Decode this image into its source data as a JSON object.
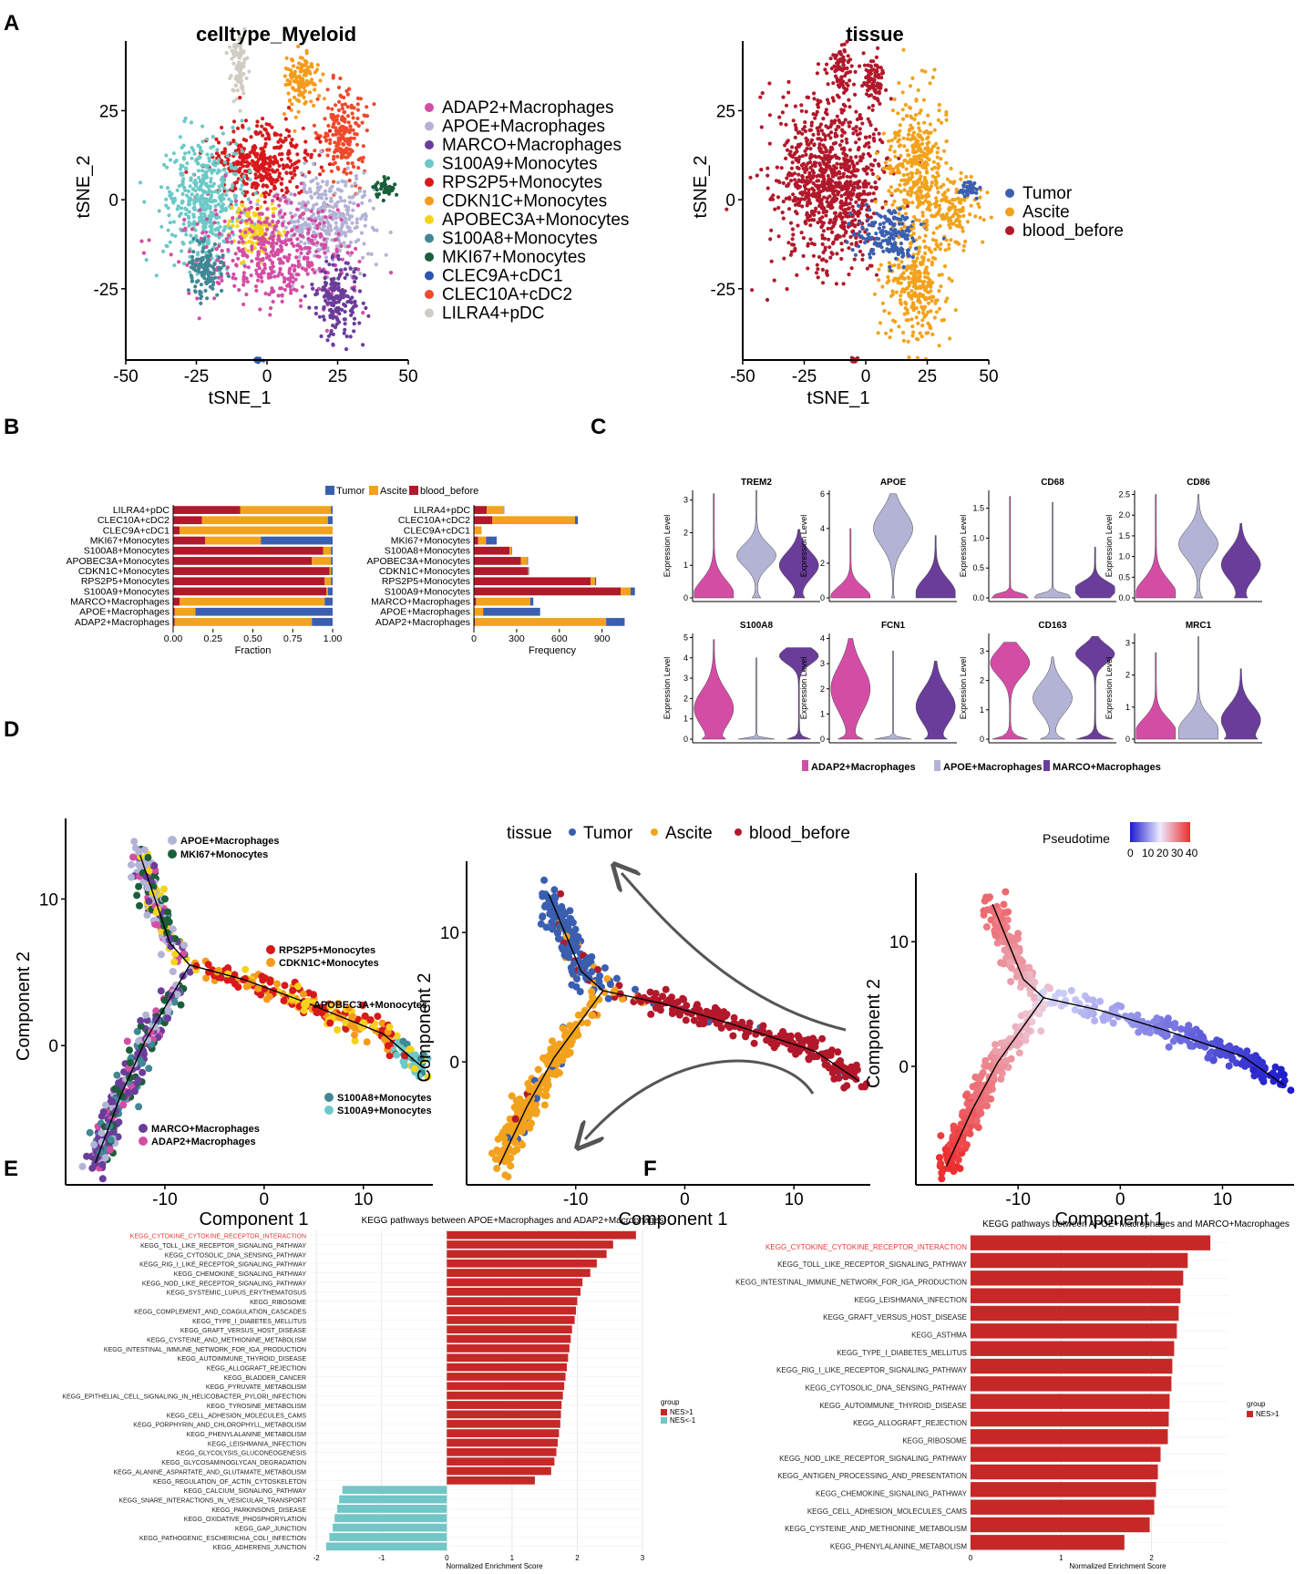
{
  "colors": {
    "ADAP2": "#d44da5",
    "APOE": "#b3b3d6",
    "MARCO": "#6a3d9a",
    "S100A9": "#6cc9c7",
    "RPS2P5": "#d7191c",
    "CDKN1C": "#f59b1c",
    "APOBEC3A": "#f5d31c",
    "S100A8": "#3f8894",
    "MKI67": "#1b5e3a",
    "CLEC9A": "#2b56b4",
    "CLEC10A": "#f0492b",
    "LILRA4": "#cfcdc3",
    "tumor": "#3a5fb0",
    "ascite": "#f2a21c",
    "blood": "#b2182b",
    "up": "#c62828",
    "down": "#73c6c6",
    "highlight": "#e53935"
  },
  "panel_labels": [
    "A",
    "B",
    "C",
    "D",
    "E",
    "F"
  ],
  "chart_data": [
    {
      "id": "A1",
      "type": "scatter",
      "title": "celltype_Myeloid",
      "xlabel": "tSNE_1",
      "ylabel": "tSNE_2",
      "xlim": [
        -50,
        50
      ],
      "ylim": [
        -45,
        42
      ],
      "xticks": [
        "-50",
        "-25",
        "0",
        "25",
        "50"
      ],
      "yticks": [
        "25",
        "0",
        "-25"
      ],
      "legend": [
        "ADAP2+Macrophages",
        "APOE+Macrophages",
        "MARCO+Macrophages",
        "S100A9+Monocytes",
        "RPS2P5+Monocytes",
        "CDKN1C+Monocytes",
        "APOBEC3A+Monocytes",
        "S100A8+Monocytes",
        "MKI67+Monocytes",
        "CLEC9A+cDC1",
        "CLEC10A+cDC2",
        "LILRA4+pDC"
      ],
      "legend_keys": [
        "ADAP2",
        "APOE",
        "MARCO",
        "S100A9",
        "RPS2P5",
        "CDKN1C",
        "APOBEC3A",
        "S100A8",
        "MKI67",
        "CLEC9A",
        "CLEC10A",
        "LILRA4"
      ],
      "clusters": [
        {
          "key": "LILRA4",
          "cx": -10,
          "cy": 37,
          "sx": 1.6,
          "sy": 3.6,
          "n": 90
        },
        {
          "key": "CDKN1C",
          "cx": 12,
          "cy": 33,
          "sx": 3,
          "sy": 4,
          "n": 130
        },
        {
          "key": "CLEC10A",
          "cx": 27,
          "cy": 18,
          "sx": 4,
          "sy": 7,
          "n": 200
        },
        {
          "key": "RPS2P5",
          "cx": -2,
          "cy": 10,
          "sx": 9,
          "sy": 5,
          "n": 380
        },
        {
          "key": "S100A9",
          "cx": -22,
          "cy": 0,
          "sx": 7,
          "sy": 9,
          "n": 450
        },
        {
          "key": "APOBEC3A",
          "cx": -4,
          "cy": -8,
          "sx": 4,
          "sy": 4,
          "n": 150
        },
        {
          "key": "APOE",
          "cx": 22,
          "cy": -5,
          "sx": 8,
          "sy": 6,
          "n": 350
        },
        {
          "key": "ADAP2",
          "cx": 2,
          "cy": -15,
          "sx": 13,
          "sy": 7,
          "n": 450
        },
        {
          "key": "S100A8",
          "cx": -22,
          "cy": -20,
          "sx": 3,
          "sy": 4,
          "n": 120
        },
        {
          "key": "MARCO",
          "cx": 25,
          "cy": -28,
          "sx": 4,
          "sy": 5,
          "n": 180
        },
        {
          "key": "MKI67",
          "cx": 42,
          "cy": 3,
          "sx": 2,
          "sy": 1.5,
          "n": 40
        },
        {
          "key": "CLEC9A",
          "cx": -3,
          "cy": -45,
          "sx": 0.7,
          "sy": 0.4,
          "n": 14
        }
      ]
    },
    {
      "id": "A2",
      "type": "scatter",
      "title": "tissue",
      "xlabel": "tSNE_1",
      "ylabel": "tSNE_2",
      "xlim": [
        -50,
        50
      ],
      "ylim": [
        -45,
        42
      ],
      "xticks": [
        "-50",
        "-25",
        "0",
        "25",
        "50"
      ],
      "yticks": [
        "25",
        "0",
        "-25"
      ],
      "legend": [
        "Tumor",
        "Ascite",
        "blood_before"
      ],
      "legend_keys": [
        "tumor",
        "ascite",
        "blood"
      ],
      "clusters": [
        {
          "key": "blood",
          "cx": -10,
          "cy": 37,
          "sx": 2,
          "sy": 3.5,
          "n": 80
        },
        {
          "key": "blood",
          "cx": 3,
          "cy": 33,
          "sx": 2,
          "sy": 4,
          "n": 90
        },
        {
          "key": "blood",
          "cx": -15,
          "cy": 5,
          "sx": 11,
          "sy": 11,
          "n": 900
        },
        {
          "key": "ascite",
          "cx": 20,
          "cy": 10,
          "sx": 6,
          "sy": 10,
          "n": 350
        },
        {
          "key": "ascite",
          "cx": 20,
          "cy": -25,
          "sx": 6,
          "sy": 7,
          "n": 280
        },
        {
          "key": "tumor",
          "cx": 10,
          "cy": -10,
          "sx": 7,
          "sy": 4,
          "n": 180
        },
        {
          "key": "ascite",
          "cx": 35,
          "cy": -3,
          "sx": 6,
          "sy": 5,
          "n": 140
        },
        {
          "key": "tumor",
          "cx": 42,
          "cy": 3,
          "sx": 2,
          "sy": 1.5,
          "n": 40
        },
        {
          "key": "blood",
          "cx": -5,
          "cy": -45,
          "sx": 0.8,
          "sy": 0.4,
          "n": 12
        }
      ]
    },
    {
      "id": "B1",
      "type": "bar",
      "stacked": true,
      "orientation": "horizontal",
      "xlabel": "Fraction",
      "xlim": [
        0,
        1
      ],
      "xticks": [
        "0.00",
        "0.25",
        "0.50",
        "0.75",
        "1.00"
      ],
      "legend": [
        "Tumor",
        "Ascite",
        "blood_before"
      ],
      "categories": [
        "LILRA4+pDC",
        "CLEC10A+cDC2",
        "CLEC9A+cDC1",
        "MKI67+Monocytes",
        "S100A8+Monocytes",
        "APOBEC3A+Monocytes",
        "CDKN1C+Monocytes",
        "RPS2P5+Monocytes",
        "S100A9+Monocytes",
        "MARCO+Macrophages",
        "APOE+Macrophages",
        "ADAP2+Macrophages"
      ],
      "series": [
        {
          "name": "blood_before",
          "values": [
            0.42,
            0.18,
            0.04,
            0.2,
            0.94,
            0.87,
            0.98,
            0.95,
            0.96,
            0.04,
            0.01,
            0.01
          ]
        },
        {
          "name": "Ascite",
          "values": [
            0.57,
            0.79,
            0.96,
            0.35,
            0.05,
            0.12,
            0.01,
            0.04,
            0.01,
            0.91,
            0.13,
            0.86
          ]
        },
        {
          "name": "Tumor",
          "values": [
            0.01,
            0.03,
            0.0,
            0.45,
            0.01,
            0.01,
            0.01,
            0.01,
            0.03,
            0.05,
            0.86,
            0.13
          ]
        }
      ]
    },
    {
      "id": "B2",
      "type": "bar",
      "stacked": true,
      "orientation": "horizontal",
      "xlabel": "Frequency",
      "xlim": [
        0,
        1100
      ],
      "xticks": [
        "0",
        "300",
        "600",
        "900"
      ],
      "categories": [
        "LILRA4+pDC",
        "CLEC10A+cDC2",
        "CLEC9A+cDC1",
        "MKI67+Monocytes",
        "S100A8+Monocytes",
        "APOBEC3A+Monocytes",
        "CDKN1C+Monocytes",
        "RPS2P5+Monocytes",
        "S100A9+Monocytes",
        "MARCO+Macrophages",
        "APOE+Macrophages",
        "ADAP2+Macrophages"
      ],
      "series": [
        {
          "name": "blood_before",
          "values": [
            90,
            130,
            4,
            30,
            250,
            330,
            380,
            820,
            1030,
            15,
            5,
            8
          ]
        },
        {
          "name": "Ascite",
          "values": [
            120,
            580,
            50,
            55,
            15,
            45,
            5,
            30,
            70,
            380,
            60,
            920
          ]
        },
        {
          "name": "Tumor",
          "values": [
            2,
            20,
            0,
            75,
            2,
            5,
            2,
            8,
            30,
            22,
            400,
            130
          ]
        }
      ]
    },
    {
      "id": "C",
      "type": "violin",
      "ylabel": "Expression Level",
      "groups": [
        "ADAP2+Macrophages",
        "APOE+Macrophages",
        "MARCO+Macrophages"
      ],
      "genes": [
        {
          "name": "TREM2",
          "ymax": 3.3,
          "yticks": [
            "0",
            "1",
            "2",
            "3"
          ],
          "tickvals": [
            0,
            1,
            2,
            3
          ],
          "shapes": [
            [
              0.35,
              0.1,
              0.45,
              3.2
            ],
            [
              0.2,
              1.3,
              0.35,
              3.3
            ],
            [
              0.25,
              1.0,
              0.4,
              2.1
            ]
          ]
        },
        {
          "name": "APOE",
          "ymax": 6.2,
          "yticks": [
            "0",
            "2",
            "4",
            "6"
          ],
          "tickvals": [
            0,
            2,
            4,
            6
          ],
          "shapes": [
            [
              0.18,
              0.05,
              0.6,
              4.0
            ],
            [
              0.05,
              4.0,
              1.0,
              6.0
            ],
            [
              0.3,
              0.3,
              0.8,
              3.6
            ]
          ]
        },
        {
          "name": "CD68",
          "ymax": 1.8,
          "yticks": [
            "0.0",
            "0.5",
            "1.0",
            "1.5"
          ],
          "tickvals": [
            0,
            0.5,
            1.0,
            1.5
          ],
          "shapes": [
            [
              0.01,
              0.02,
              0.05,
              1.7
            ],
            [
              0.01,
              0.02,
              0.05,
              1.6
            ],
            [
              0.3,
              0.15,
              0.12,
              0.85
            ]
          ]
        },
        {
          "name": "CD86",
          "ymax": 2.6,
          "yticks": [
            "0.0",
            "0.5",
            "1.0",
            "1.5",
            "2.0",
            "2.5"
          ],
          "tickvals": [
            0,
            0.5,
            1.0,
            1.5,
            2.0,
            2.5
          ],
          "shapes": [
            [
              0.3,
              0.1,
              0.35,
              2.5
            ],
            [
              0.2,
              1.3,
              0.35,
              2.5
            ],
            [
              0.25,
              0.8,
              0.35,
              1.8
            ]
          ]
        },
        {
          "name": "S100A8",
          "ymax": 5.2,
          "yticks": [
            "0",
            "1",
            "2",
            "3",
            "4",
            "5"
          ],
          "tickvals": [
            0,
            1,
            2,
            3,
            4,
            5
          ],
          "shapes": [
            [
              0.35,
              1.5,
              0.9,
              4.9
            ],
            [
              0.01,
              0.02,
              0.05,
              4.0
            ],
            [
              0.6,
              4.1,
              0.4,
              4.5
            ]
          ]
        },
        {
          "name": "FCN1",
          "ymax": 4.2,
          "yticks": [
            "0",
            "1",
            "2",
            "3",
            "4"
          ],
          "tickvals": [
            0,
            1,
            2,
            3,
            4
          ],
          "shapes": [
            [
              0.55,
              2.0,
              0.9,
              4.0
            ],
            [
              0.01,
              0.02,
              0.05,
              3.5
            ],
            [
              0.4,
              1.3,
              0.7,
              3.1
            ]
          ]
        },
        {
          "name": "CD163",
          "ymax": 3.6,
          "yticks": [
            "0",
            "1",
            "2",
            "3"
          ],
          "tickvals": [
            0,
            1,
            2,
            3
          ],
          "shapes": [
            [
              0.9,
              2.6,
              0.45,
              3.3
            ],
            [
              0.6,
              1.4,
              0.5,
              2.8
            ],
            [
              0.95,
              2.9,
              0.3,
              3.5
            ]
          ]
        },
        {
          "name": "MRC1",
          "ymax": 3.3,
          "yticks": [
            "0",
            "1",
            "2",
            "3"
          ],
          "tickvals": [
            0,
            1,
            2,
            3
          ],
          "shapes": [
            [
              0.45,
              0.25,
              0.4,
              2.7
            ],
            [
              0.25,
              0.3,
              0.4,
              3.2
            ],
            [
              0.45,
              0.6,
              0.45,
              2.2
            ]
          ]
        }
      ]
    },
    {
      "id": "D1",
      "type": "scatter",
      "subtype": "trajectory",
      "xlabel": "Component 1",
      "ylabel": "Component 2",
      "xlim": [
        -20,
        17
      ],
      "ylim": [
        -9.5,
        15.5
      ],
      "xticks": [
        "-10",
        "0",
        "10"
      ],
      "yticks": [
        "10",
        "0"
      ],
      "labels": [
        {
          "text": "APOE+Macrophages",
          "key": "APOE"
        },
        {
          "text": "MKI67+Monocytes",
          "key": "MKI67"
        },
        {
          "text": "RPS2P5+Monocytes",
          "key": "RPS2P5"
        },
        {
          "text": "CDKN1C+Monocytes",
          "key": "CDKN1C"
        },
        {
          "text": "APOBEC3A+Monocytes",
          "key": "APOBEC3A"
        },
        {
          "text": "S100A8+Monocytes",
          "key": "S100A8"
        },
        {
          "text": "S100A9+Monocytes",
          "key": "S100A9"
        },
        {
          "text": "MARCO+Macrophages",
          "key": "MARCO"
        },
        {
          "text": "ADAP2+Macrophages",
          "key": "ADAP2"
        }
      ]
    },
    {
      "id": "D2",
      "type": "scatter",
      "subtype": "trajectory",
      "xlabel": "Component 1",
      "ylabel": "Component 2",
      "xlim": [
        -20,
        17
      ],
      "ylim": [
        -9.5,
        15.5
      ],
      "xticks": [
        "-10",
        "0",
        "10"
      ],
      "yticks": [
        "10",
        "0"
      ],
      "legend_title": "tissue",
      "legend": [
        "Tumor",
        "Ascite",
        "blood_before"
      ]
    },
    {
      "id": "D3",
      "type": "scatter",
      "subtype": "trajectory",
      "xlabel": "Component 1",
      "ylabel": "Component 2",
      "xlim": [
        -20,
        17
      ],
      "ylim": [
        -9.5,
        15.5
      ],
      "xticks": [
        "-10",
        "0",
        "10"
      ],
      "yticks": [
        "10",
        "0"
      ],
      "colorbar_title": "Pseudotime",
      "colorbar_ticks": [
        "0",
        "10",
        "20",
        "30",
        "40"
      ]
    },
    {
      "id": "E",
      "type": "bar",
      "orientation": "horizontal",
      "title": "KEGG pathways between APOE+Macrophages and ADAP2+Macrophages",
      "xlabel": "Normalized Enrichment Score",
      "xlim": [
        -2.1,
        3.0
      ],
      "xticks": [
        "-2",
        "-1",
        "0",
        "1",
        "2",
        "3"
      ],
      "legend_title": "group",
      "legend": [
        "NES>1",
        "NES<-1"
      ],
      "categories": [
        "KEGG_CYTOKINE_CYTOKINE_RECEPTOR_INTERACTION",
        "KEGG_TOLL_LIKE_RECEPTOR_SIGNALING_PATHWAY",
        "KEGG_CYTOSOLIC_DNA_SENSING_PATHWAY",
        "KEGG_RIG_I_LIKE_RECEPTOR_SIGNALING_PATHWAY",
        "KEGG_CHEMOKINE_SIGNALING_PATHWAY",
        "KEGG_NOD_LIKE_RECEPTOR_SIGNALING_PATHWAY",
        "KEGG_SYSTEMIC_LUPUS_ERYTHEMATOSUS",
        "KEGG_RIBOSOME",
        "KEGG_COMPLEMENT_AND_COAGULATION_CASCADES",
        "KEGG_TYPE_I_DIABETES_MELLITUS",
        "KEGG_GRAFT_VERSUS_HOST_DISEASE",
        "KEGG_CYSTEINE_AND_METHIONINE_METABOLISM",
        "KEGG_INTESTINAL_IMMUNE_NETWORK_FOR_IGA_PRODUCTION",
        "KEGG_AUTOIMMUNE_THYROID_DISEASE",
        "KEGG_ALLOGRAFT_REJECTION",
        "KEGG_BLADDER_CANCER",
        "KEGG_PYRUVATE_METABOLISM",
        "KEGG_EPITHELIAL_CELL_SIGNALING_IN_HELICOBACTER_PYLORI_INFECTION",
        "KEGG_TYROSINE_METABOLISM",
        "KEGG_CELL_ADHESION_MOLECULES_CAMS",
        "KEGG_PORPHYRIN_AND_CHLOROPHYLL_METABOLISM",
        "KEGG_PHENYLALANINE_METABOLISM",
        "KEGG_LEISHMANIA_INFECTION",
        "KEGG_GLYCOLYSIS_GLUCONEOGENESIS",
        "KEGG_GLYCOSAMINOGLYCAN_DEGRADATION",
        "KEGG_ALANINE_ASPARTATE_AND_GLUTAMATE_METABOLISM",
        "KEGG_REGULATION_OF_ACTIN_CYTOSKELETON",
        "KEGG_CALCIUM_SIGNALING_PATHWAY",
        "KEGG_SNARE_INTERACTIONS_IN_VESICULAR_TRANSPORT",
        "KEGG_PARKINSONS_DISEASE",
        "KEGG_OXIDATIVE_PHOSPHORYLATION",
        "KEGG_GAP_JUNCTION",
        "KEGG_PATHOGENIC_ESCHERICHIA_COLI_INFECTION",
        "KEGG_ADHERENS_JUNCTION"
      ],
      "values": [
        2.9,
        2.55,
        2.45,
        2.3,
        2.2,
        2.08,
        2.05,
        2.0,
        1.98,
        1.96,
        1.92,
        1.9,
        1.88,
        1.86,
        1.84,
        1.82,
        1.8,
        1.78,
        1.76,
        1.75,
        1.74,
        1.72,
        1.7,
        1.68,
        1.65,
        1.6,
        1.35,
        -1.6,
        -1.65,
        -1.68,
        -1.72,
        -1.75,
        -1.8,
        -1.85
      ],
      "highlight_index": 0
    },
    {
      "id": "F",
      "type": "bar",
      "orientation": "horizontal",
      "title": "KEGG pathways between APOE+Macrophages and MARCO+Macrophages",
      "xlabel": "Normalized Enrichment Score",
      "xlim": [
        0,
        2.85
      ],
      "xticks": [
        "0",
        "1",
        "2"
      ],
      "legend_title": "group",
      "legend": [
        "NES>1"
      ],
      "categories": [
        "KEGG_CYTOKINE_CYTOKINE_RECEPTOR_INTERACTION",
        "KEGG_TOLL_LIKE_RECEPTOR_SIGNALING_PATHWAY",
        "KEGG_INTESTINAL_IMMUNE_NETWORK_FOR_IGA_PRODUCTION",
        "KEGG_LEISHMANIA_INFECTION",
        "KEGG_GRAFT_VERSUS_HOST_DISEASE",
        "KEGG_ASTHMA",
        "KEGG_TYPE_I_DIABETES_MELLITUS",
        "KEGG_RIG_I_LIKE_RECEPTOR_SIGNALING_PATHWAY",
        "KEGG_CYTOSOLIC_DNA_SENSING_PATHWAY",
        "KEGG_AUTOIMMUNE_THYROID_DISEASE",
        "KEGG_ALLOGRAFT_REJECTION",
        "KEGG_RIBOSOME",
        "KEGG_NOD_LIKE_RECEPTOR_SIGNALING_PATHWAY",
        "KEGG_ANTIGEN_PROCESSING_AND_PRESENTATION",
        "KEGG_CHEMOKINE_SIGNALING_PATHWAY",
        "KEGG_CELL_ADHESION_MOLECULES_CAMS",
        "KEGG_CYSTEINE_AND_METHIONINE_METABOLISM",
        "KEGG_PHENYLALANINE_METABOLISM"
      ],
      "values": [
        2.65,
        2.4,
        2.35,
        2.32,
        2.3,
        2.28,
        2.25,
        2.23,
        2.22,
        2.2,
        2.19,
        2.18,
        2.1,
        2.07,
        2.05,
        2.03,
        1.98,
        1.7
      ],
      "highlight_index": 0
    }
  ]
}
